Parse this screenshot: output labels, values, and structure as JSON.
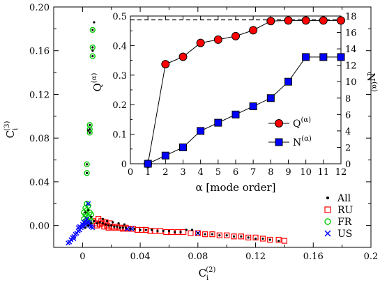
{
  "chart_data": [
    {
      "type": "scatter",
      "xlabel": {
        "base": "C",
        "sub": "i",
        "sup": "(2)"
      },
      "ylabel": {
        "base": "C",
        "sub": "i",
        "sup": "(3)"
      },
      "xlim": [
        -0.02,
        0.2
      ],
      "ylim": [
        -0.02,
        0.2
      ],
      "xticks": [
        "0",
        "0.04",
        "0.08",
        "0.12",
        "0.16",
        "0.2"
      ],
      "xtick_values": [
        0,
        0.04,
        0.08,
        0.12,
        0.16,
        0.2
      ],
      "yticks": [
        "0.00",
        "0.04",
        "0.08",
        "0.12",
        "0.16",
        "0.20"
      ],
      "ytick_values": [
        0,
        0.04,
        0.08,
        0.12,
        0.16,
        0.2
      ],
      "legend_position": "bottom-right",
      "series": [
        {
          "name": "All",
          "marker": "dot",
          "color": "#000000",
          "points": [
            [
              0.008,
              0.186
            ],
            [
              0.007,
              0.179
            ],
            [
              0.007,
              0.163
            ],
            [
              0.007,
              0.16
            ],
            [
              0.007,
              0.155
            ],
            [
              0.005,
              0.092
            ],
            [
              0.005,
              0.088
            ],
            [
              0.005,
              0.085
            ],
            [
              0.004,
              0.087
            ],
            [
              0.003,
              0.056
            ],
            [
              0.003,
              0.048
            ],
            [
              0.002,
              0.012
            ],
            [
              0.004,
              0.014
            ],
            [
              0.006,
              0.008
            ],
            [
              0.008,
              0.004
            ],
            [
              0.01,
              0.002
            ],
            [
              0.012,
              0.003
            ],
            [
              0.014,
              0.002
            ],
            [
              0.016,
              0.001
            ],
            [
              0.018,
              0.0
            ],
            [
              0.02,
              0.0
            ],
            [
              0.022,
              -0.001
            ],
            [
              0.024,
              -0.001
            ],
            [
              0.026,
              -0.002
            ],
            [
              0.028,
              -0.002
            ],
            [
              0.03,
              -0.002
            ],
            [
              0.033,
              -0.003
            ],
            [
              0.036,
              -0.003
            ],
            [
              0.04,
              -0.004
            ],
            [
              0.044,
              -0.004
            ],
            [
              0.048,
              -0.004
            ],
            [
              0.052,
              -0.005
            ],
            [
              0.056,
              -0.005
            ],
            [
              0.06,
              -0.005
            ],
            [
              0.064,
              -0.006
            ],
            [
              0.068,
              -0.006
            ],
            [
              0.072,
              -0.004
            ],
            [
              0.076,
              -0.004
            ],
            [
              0.08,
              -0.007
            ],
            [
              0.085,
              -0.008
            ],
            [
              0.09,
              -0.008
            ],
            [
              0.095,
              -0.009
            ],
            [
              0.1,
              -0.009
            ],
            [
              0.105,
              -0.01
            ],
            [
              0.11,
              -0.01
            ],
            [
              0.115,
              -0.011
            ],
            [
              0.12,
              -0.012
            ],
            [
              0.125,
              -0.012
            ],
            [
              0.13,
              -0.013
            ],
            [
              0.136,
              -0.014
            ],
            [
              0.014,
              0.006
            ],
            [
              0.017,
              0.004
            ],
            [
              0.021,
              0.003
            ],
            [
              0.025,
              0.002
            ],
            [
              0.029,
              0.001
            ],
            [
              0.006,
              0.002
            ],
            [
              0.004,
              0.0
            ],
            [
              0.002,
              -0.002
            ]
          ]
        },
        {
          "name": "RU",
          "marker": "square",
          "color": "#ff0000",
          "points": [
            [
              0.007,
              0.004
            ],
            [
              0.009,
              0.002
            ],
            [
              0.01,
              0.0
            ],
            [
              0.012,
              0.001
            ],
            [
              0.014,
              0.002
            ],
            [
              0.015,
              -0.001
            ],
            [
              0.017,
              0.0
            ],
            [
              0.018,
              -0.002
            ],
            [
              0.02,
              -0.001
            ],
            [
              0.022,
              -0.002
            ],
            [
              0.024,
              -0.001
            ],
            [
              0.026,
              -0.002
            ],
            [
              0.028,
              -0.003
            ],
            [
              0.03,
              -0.002
            ],
            [
              0.032,
              -0.003
            ],
            [
              0.035,
              -0.003
            ],
            [
              0.038,
              -0.004
            ],
            [
              0.041,
              -0.004
            ],
            [
              0.044,
              -0.004
            ],
            [
              0.047,
              -0.005
            ],
            [
              0.05,
              -0.005
            ],
            [
              0.054,
              -0.005
            ],
            [
              0.058,
              -0.006
            ],
            [
              0.062,
              -0.006
            ],
            [
              0.066,
              -0.006
            ],
            [
              0.07,
              -0.006
            ],
            [
              0.075,
              -0.007
            ],
            [
              0.08,
              -0.007
            ],
            [
              0.085,
              -0.008
            ],
            [
              0.09,
              -0.008
            ],
            [
              0.095,
              -0.009
            ],
            [
              0.1,
              -0.009
            ],
            [
              0.105,
              -0.01
            ],
            [
              0.11,
              -0.01
            ],
            [
              0.115,
              -0.011
            ],
            [
              0.12,
              -0.011
            ],
            [
              0.125,
              -0.012
            ],
            [
              0.13,
              -0.013
            ],
            [
              0.136,
              -0.013
            ],
            [
              0.14,
              -0.014
            ],
            [
              0.011,
              0.006
            ],
            [
              0.013,
              0.004
            ],
            [
              0.016,
              0.003
            ],
            [
              0.019,
              0.002
            ]
          ]
        },
        {
          "name": "FR",
          "marker": "circle",
          "color": "#00cc00",
          "points": [
            [
              0.007,
              0.179
            ],
            [
              0.007,
              0.163
            ],
            [
              0.007,
              0.155
            ],
            [
              0.005,
              0.092
            ],
            [
              0.005,
              0.088
            ],
            [
              0.005,
              0.085
            ],
            [
              0.003,
              0.056
            ],
            [
              0.003,
              0.048
            ],
            [
              0.003,
              0.02
            ],
            [
              0.004,
              0.018
            ],
            [
              0.002,
              0.016
            ],
            [
              0.003,
              0.014
            ],
            [
              0.001,
              0.012
            ],
            [
              0.002,
              0.01
            ],
            [
              0.003,
              0.009
            ],
            [
              0.004,
              0.008
            ],
            [
              0.005,
              0.012
            ],
            [
              0.006,
              0.01
            ],
            [
              0.001,
              0.006
            ],
            [
              0.002,
              0.004
            ],
            [
              0.003,
              0.005
            ],
            [
              0.004,
              0.003
            ],
            [
              0.005,
              0.006
            ],
            [
              0.006,
              0.004
            ]
          ]
        },
        {
          "name": "US",
          "marker": "cross",
          "color": "#0000ff",
          "points": [
            [
              -0.01,
              -0.016
            ],
            [
              -0.008,
              -0.013
            ],
            [
              -0.007,
              -0.011
            ],
            [
              -0.006,
              -0.01
            ],
            [
              -0.005,
              -0.008
            ],
            [
              -0.004,
              -0.007
            ],
            [
              -0.003,
              -0.005
            ],
            [
              -0.002,
              -0.004
            ],
            [
              -0.001,
              -0.002
            ],
            [
              0.0,
              -0.001
            ],
            [
              0.001,
              0.0
            ],
            [
              0.002,
              0.001
            ],
            [
              0.003,
              0.002
            ],
            [
              0.004,
              0.003
            ],
            [
              -0.003,
              -0.002
            ],
            [
              -0.002,
              -0.001
            ],
            [
              0.0,
              0.001
            ],
            [
              0.001,
              0.003
            ],
            [
              0.002,
              0.004
            ],
            [
              0.003,
              0.006
            ],
            [
              0.004,
              0.001
            ],
            [
              0.005,
              0.0
            ],
            [
              0.006,
              -0.001
            ],
            [
              0.007,
              -0.002
            ],
            [
              0.005,
              0.002
            ],
            [
              -0.006,
              -0.012
            ],
            [
              -0.009,
              -0.015
            ],
            [
              0.004,
              0.02
            ],
            [
              0.08,
              -0.007
            ],
            [
              0.031,
              -0.003
            ],
            [
              0.034,
              -0.003
            ]
          ]
        }
      ]
    },
    {
      "type": "line",
      "xlabel": "α [mode order]",
      "ylabel_left": {
        "base": "Q",
        "sup": "(α)"
      },
      "ylabel_right": {
        "base": "N",
        "sup": "(α)"
      },
      "xlim": [
        0,
        12
      ],
      "ylim_left": [
        0,
        0.5
      ],
      "ylim_right": [
        0,
        18
      ],
      "xticks": [
        "0",
        "1",
        "2",
        "3",
        "4",
        "5",
        "6",
        "7",
        "8",
        "9",
        "10",
        "11",
        "12"
      ],
      "yticks_left": [
        "0",
        "0.1",
        "0.2",
        "0.3",
        "0.4",
        "0.5"
      ],
      "yticks_right": [
        "0",
        "2",
        "4",
        "6",
        "8",
        "10",
        "12",
        "14",
        "16",
        "18"
      ],
      "reference_line": {
        "axis": "left",
        "y": 0.487,
        "style": "dashed"
      },
      "legend_position": "right",
      "x": [
        1,
        2,
        3,
        4,
        5,
        6,
        7,
        8,
        9,
        10,
        11,
        12
      ],
      "series": [
        {
          "name": "Q(α)",
          "label_base": "Q",
          "label_sup": "(α)",
          "marker": "circle",
          "color": "#ff0000",
          "axis": "left",
          "values": [
            0.0,
            0.337,
            0.362,
            0.409,
            0.42,
            0.432,
            0.452,
            0.483,
            0.485,
            0.485,
            0.485,
            0.485
          ]
        },
        {
          "name": "N(α)",
          "label_base": "N",
          "label_sup": "(α)",
          "marker": "square",
          "color": "#0000ff",
          "axis": "right",
          "values": [
            0,
            1,
            2,
            4,
            5,
            6,
            7,
            8,
            10,
            13,
            13,
            13
          ]
        }
      ]
    }
  ]
}
